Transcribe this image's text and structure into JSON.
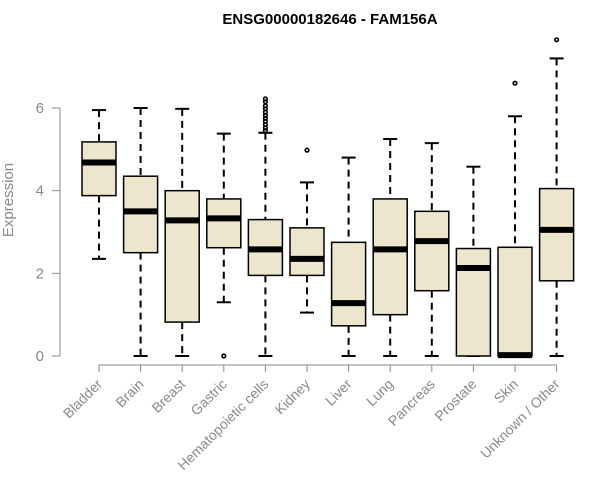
{
  "chart_data": {
    "type": "boxplot",
    "title": "ENSG00000182646 - FAM156A",
    "ylabel": "Expression",
    "xlabel": "",
    "ylim": [
      0,
      7.8
    ],
    "yticks": [
      0,
      2,
      4,
      6
    ],
    "colors": {
      "box_fill": "#ede6cc",
      "line": "#000000",
      "axis": "#8a8a8a"
    },
    "categories": [
      "Bladder",
      "Brain",
      "Breast",
      "Gastric",
      "Hematopoietic cells",
      "Kidney",
      "Liver",
      "Lung",
      "Pancreas",
      "Prostate",
      "Skin",
      "Unknown / Other"
    ],
    "boxes": [
      {
        "label": "Bladder",
        "min": 2.35,
        "q1": 3.88,
        "median": 4.68,
        "q3": 5.18,
        "max": 5.95,
        "outliers": []
      },
      {
        "label": "Brain",
        "min": 0.0,
        "q1": 2.5,
        "median": 3.5,
        "q3": 4.35,
        "max": 6.0,
        "outliers": []
      },
      {
        "label": "Breast",
        "min": 0.0,
        "q1": 0.82,
        "median": 3.28,
        "q3": 4.0,
        "max": 5.98,
        "outliers": []
      },
      {
        "label": "Gastric",
        "min": 1.3,
        "q1": 2.62,
        "median": 3.33,
        "q3": 3.8,
        "max": 5.38,
        "outliers": [
          0.0
        ]
      },
      {
        "label": "Hematopoietic cells",
        "min": 0.0,
        "q1": 1.95,
        "median": 2.58,
        "q3": 3.3,
        "max": 5.4,
        "outliers": [
          5.45,
          5.52,
          5.6,
          5.68,
          5.75,
          5.82,
          5.9,
          5.98,
          6.05,
          6.15,
          6.22
        ]
      },
      {
        "label": "Kidney",
        "min": 1.05,
        "q1": 1.95,
        "median": 2.35,
        "q3": 3.1,
        "max": 4.2,
        "outliers": [
          4.98
        ]
      },
      {
        "label": "Liver",
        "min": 0.0,
        "q1": 0.73,
        "median": 1.28,
        "q3": 2.75,
        "max": 4.8,
        "outliers": []
      },
      {
        "label": "Lung",
        "min": 0.0,
        "q1": 1.0,
        "median": 2.58,
        "q3": 3.8,
        "max": 5.25,
        "outliers": []
      },
      {
        "label": "Pancreas",
        "min": 0.0,
        "q1": 1.58,
        "median": 2.78,
        "q3": 3.5,
        "max": 5.15,
        "outliers": []
      },
      {
        "label": "Prostate",
        "min": 0.0,
        "q1": 0.0,
        "median": 2.13,
        "q3": 2.6,
        "max": 4.58,
        "outliers": []
      },
      {
        "label": "Skin",
        "min": 0.0,
        "q1": 0.0,
        "median": 0.02,
        "q3": 2.63,
        "max": 5.8,
        "outliers": [
          6.6
        ]
      },
      {
        "label": "Unknown / Other",
        "min": 0.0,
        "q1": 1.82,
        "median": 3.05,
        "q3": 4.05,
        "max": 7.2,
        "outliers": [
          7.65
        ]
      }
    ]
  }
}
